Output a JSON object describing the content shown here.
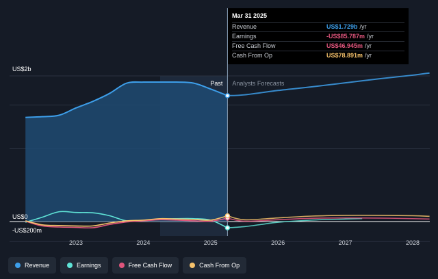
{
  "colors": {
    "revenue": "#3d9ee9",
    "earnings": "#5fe3d6",
    "fcf": "#e0557c",
    "cfo": "#f6c26b",
    "background": "#151b26"
  },
  "tooltip": {
    "date": "Mar 31 2025",
    "rows": [
      {
        "label": "Revenue",
        "value": "US$1.729b",
        "unit": "/yr",
        "color": "#3d9ee9"
      },
      {
        "label": "Earnings",
        "value": "-US$85.787m",
        "unit": "/yr",
        "color": "#e0557c"
      },
      {
        "label": "Free Cash Flow",
        "value": "US$46.945m",
        "unit": "/yr",
        "color": "#e0557c"
      },
      {
        "label": "Cash From Op",
        "value": "US$78.891m",
        "unit": "/yr",
        "color": "#f6c26b"
      }
    ]
  },
  "labels": {
    "past": "Past",
    "forecast": "Analysts Forecasts"
  },
  "legend": [
    {
      "label": "Revenue",
      "color": "#3d9ee9"
    },
    {
      "label": "Earnings",
      "color": "#5fe3d6"
    },
    {
      "label": "Free Cash Flow",
      "color": "#e0557c"
    },
    {
      "label": "Cash From Op",
      "color": "#f6c26b"
    }
  ],
  "chart_data": {
    "type": "line",
    "y_unit": "US$ millions",
    "ylim": [
      -200,
      2000
    ],
    "y_ticks": [
      {
        "value": 2000,
        "label": "US$2b"
      },
      {
        "value": 0,
        "label": "US$0"
      },
      {
        "value": -200,
        "label": "-US$200m"
      }
    ],
    "xlim": [
      2022.25,
      2028.25
    ],
    "x_ticks": [
      2023,
      2024,
      2025,
      2026,
      2027,
      2028
    ],
    "x_tick_labels": [
      "2023",
      "2024",
      "2025",
      "2026",
      "2027",
      "2028"
    ],
    "past_end": 2025.25,
    "highlight_start": 2024.25,
    "series": [
      {
        "name": "Revenue",
        "key": "revenue",
        "past": [
          [
            2022.25,
            1430
          ],
          [
            2022.5,
            1440
          ],
          [
            2022.75,
            1460
          ],
          [
            2023.0,
            1560
          ],
          [
            2023.25,
            1650
          ],
          [
            2023.5,
            1760
          ],
          [
            2023.75,
            1900
          ],
          [
            2024.0,
            1915
          ],
          [
            2024.25,
            1915
          ],
          [
            2024.5,
            1915
          ],
          [
            2024.75,
            1900
          ],
          [
            2025.0,
            1820
          ],
          [
            2025.25,
            1729
          ]
        ],
        "forecast": [
          [
            2025.25,
            1729
          ],
          [
            2025.5,
            1740
          ],
          [
            2026.0,
            1800
          ],
          [
            2026.5,
            1850
          ],
          [
            2027.0,
            1905
          ],
          [
            2027.5,
            1960
          ],
          [
            2028.0,
            2010
          ],
          [
            2028.25,
            2040
          ]
        ]
      },
      {
        "name": "Earnings",
        "key": "earnings",
        "past": [
          [
            2022.25,
            -10
          ],
          [
            2022.5,
            60
          ],
          [
            2022.75,
            135
          ],
          [
            2023.0,
            125
          ],
          [
            2023.25,
            120
          ],
          [
            2023.5,
            80
          ],
          [
            2023.75,
            10
          ],
          [
            2024.0,
            15
          ],
          [
            2024.25,
            35
          ],
          [
            2024.5,
            40
          ],
          [
            2024.75,
            40
          ],
          [
            2025.0,
            20
          ],
          [
            2025.25,
            -85.787
          ]
        ],
        "forecast": [
          [
            2025.25,
            -85.787
          ],
          [
            2025.5,
            -70
          ],
          [
            2025.75,
            -40
          ],
          [
            2026.0,
            -10
          ],
          [
            2026.5,
            20
          ],
          [
            2027.0,
            35
          ],
          [
            2027.25,
            42
          ]
        ]
      },
      {
        "name": "Free Cash Flow",
        "key": "fcf",
        "past": [
          [
            2022.25,
            5
          ],
          [
            2022.5,
            -60
          ],
          [
            2022.75,
            -75
          ],
          [
            2023.0,
            -80
          ],
          [
            2023.25,
            -85
          ],
          [
            2023.5,
            -40
          ],
          [
            2023.75,
            -5
          ],
          [
            2024.0,
            10
          ],
          [
            2024.25,
            25
          ],
          [
            2024.5,
            20
          ],
          [
            2024.75,
            10
          ],
          [
            2025.0,
            5
          ],
          [
            2025.25,
            46.945
          ]
        ],
        "forecast": [
          [
            2025.25,
            46.945
          ],
          [
            2025.5,
            5
          ],
          [
            2026.0,
            25
          ],
          [
            2026.5,
            45
          ],
          [
            2027.0,
            50
          ],
          [
            2027.5,
            48
          ],
          [
            2028.0,
            40
          ],
          [
            2028.25,
            35
          ]
        ]
      },
      {
        "name": "Cash From Op",
        "key": "cfo",
        "past": [
          [
            2022.25,
            10
          ],
          [
            2022.5,
            -45
          ],
          [
            2022.75,
            -55
          ],
          [
            2023.0,
            -60
          ],
          [
            2023.25,
            -60
          ],
          [
            2023.5,
            -20
          ],
          [
            2023.75,
            10
          ],
          [
            2024.0,
            20
          ],
          [
            2024.25,
            40
          ],
          [
            2024.5,
            35
          ],
          [
            2024.75,
            30
          ],
          [
            2025.0,
            20
          ],
          [
            2025.25,
            78.891
          ]
        ],
        "forecast": [
          [
            2025.25,
            78.891
          ],
          [
            2025.5,
            25
          ],
          [
            2026.0,
            50
          ],
          [
            2026.5,
            75
          ],
          [
            2027.0,
            85
          ],
          [
            2027.5,
            85
          ],
          [
            2028.0,
            80
          ],
          [
            2028.25,
            72
          ]
        ]
      }
    ]
  }
}
